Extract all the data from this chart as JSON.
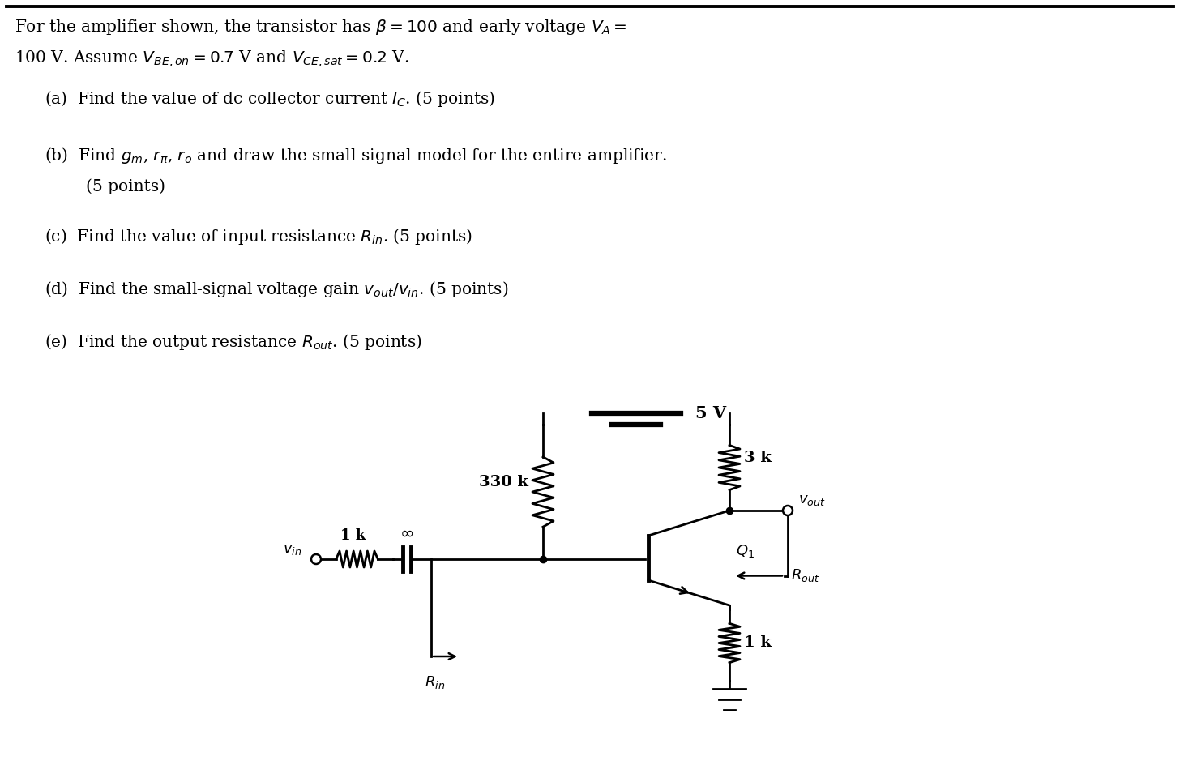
{
  "bg_color": "#ffffff",
  "text_color": "#000000",
  "title_line1": "For the amplifier shown, the transistor has $\\beta = 100$ and early voltage $V_A =$",
  "title_line2": "100 V. Assume $V_{BE,on} = 0.7$ V and $V_{CE,sat} = 0.2$ V.",
  "q_a": "(a)  Find the value of dc collector current $I_C$. (5 points)",
  "q_b1": "(b)  Find $g_m$, $r_\\pi$, $r_o$ and draw the small-signal model for the entire amplifier.",
  "q_b2": "        (5 points)",
  "q_c": "(c)  Find the value of input resistance $R_{in}$. (5 points)",
  "q_d": "(d)  Find the small-signal voltage gain $v_{out}/v_{in}$. (5 points)",
  "q_e": "(e)  Find the output resistance $R_{out}$. (5 points)",
  "vcc_label": "5 V",
  "r330_label": "330 k",
  "r3k_label": "3 k",
  "r1k_in_label": "1 k",
  "r1k_e_label": "1 k",
  "vin_label": "$v_{in}$",
  "vout_label": "$v_{out}$",
  "q1_label": "$Q_1$",
  "rin_label": "$R_{in}$",
  "rout_label": "$R_{out}$",
  "cap_label": "$\\infty$"
}
